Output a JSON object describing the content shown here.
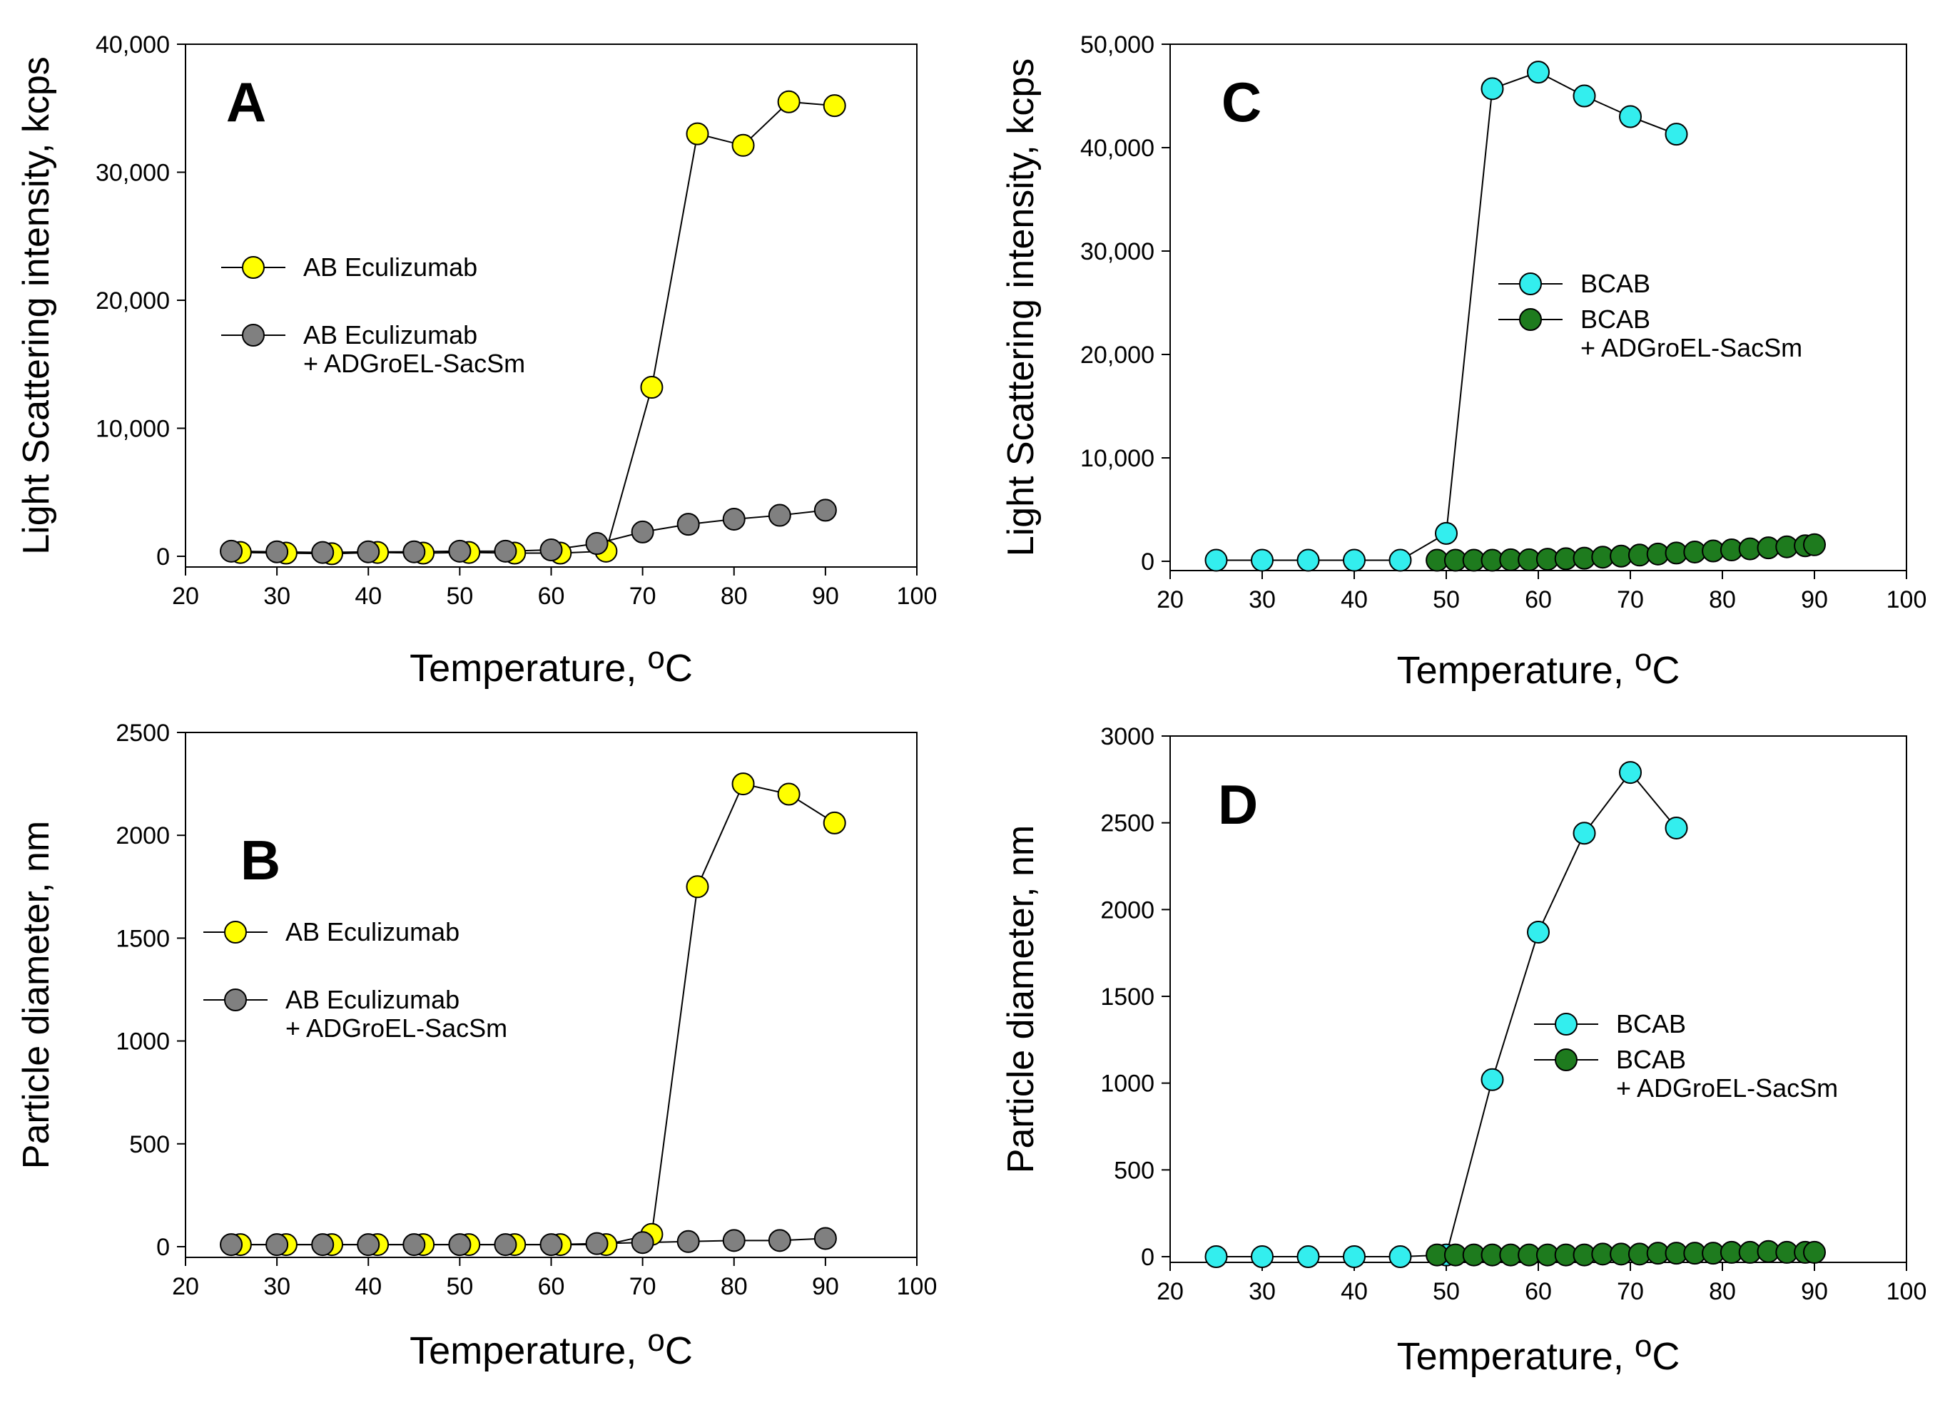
{
  "chart_data": [
    {
      "panel_label": "A",
      "type": "scatter",
      "xlabel": "Temperature, ",
      "xlabel_superscript": "o",
      "xlabel_suffix": "C",
      "ylabel": "Light Scattering intensity, kcps",
      "xlim": [
        20,
        100
      ],
      "ylim": [
        0,
        40000
      ],
      "xticks": [
        20,
        30,
        40,
        50,
        60,
        70,
        80,
        90,
        100
      ],
      "yticks": [
        0,
        10000,
        20000,
        30000,
        40000
      ],
      "ytick_labels": [
        "0",
        "10,000",
        "20,000",
        "30,000",
        "40,000"
      ],
      "legend_position": "left-middle",
      "series": [
        {
          "name": "AB Eculizumab",
          "name_line2": "",
          "color": "#ffff00",
          "x": [
            26,
            31,
            36,
            41,
            46,
            51,
            56,
            61,
            66,
            71,
            76,
            81,
            86,
            91
          ],
          "y": [
            300,
            250,
            200,
            300,
            250,
            300,
            250,
            250,
            400,
            13200,
            33000,
            32100,
            35500,
            35200
          ]
        },
        {
          "name": "AB Eculizumab",
          "name_line2": "+ ADGroEL-SacSm",
          "color": "#808080",
          "x": [
            25,
            30,
            35,
            40,
            45,
            50,
            55,
            60,
            65,
            70,
            75,
            80,
            85,
            90
          ],
          "y": [
            400,
            350,
            300,
            350,
            350,
            400,
            400,
            500,
            1000,
            1900,
            2500,
            2900,
            3200,
            3600
          ]
        }
      ]
    },
    {
      "panel_label": "B",
      "type": "scatter",
      "xlabel": "Temperature, ",
      "xlabel_superscript": "o",
      "xlabel_suffix": "C",
      "ylabel": "Particle diameter, nm",
      "xlim": [
        20,
        100
      ],
      "ylim": [
        0,
        2500
      ],
      "xticks": [
        20,
        30,
        40,
        50,
        60,
        70,
        80,
        90,
        100
      ],
      "yticks": [
        0,
        500,
        1000,
        1500,
        2000,
        2500
      ],
      "ytick_labels": [
        "0",
        "500",
        "1000",
        "1500",
        "2000",
        "2500"
      ],
      "legend_position": "left-middle",
      "series": [
        {
          "name": "AB Eculizumab",
          "name_line2": "",
          "color": "#ffff00",
          "x": [
            26,
            31,
            36,
            41,
            46,
            51,
            56,
            61,
            66,
            71,
            76,
            81,
            86,
            91
          ],
          "y": [
            10,
            10,
            10,
            10,
            10,
            10,
            10,
            10,
            10,
            60,
            1750,
            2250,
            2200,
            2060
          ]
        },
        {
          "name": "AB Eculizumab",
          "name_line2": "+ ADGroEL-SacSm",
          "color": "#808080",
          "x": [
            25,
            30,
            35,
            40,
            45,
            50,
            55,
            60,
            65,
            70,
            75,
            80,
            85,
            90
          ],
          "y": [
            10,
            10,
            10,
            10,
            10,
            10,
            10,
            10,
            15,
            20,
            25,
            30,
            30,
            40
          ]
        }
      ]
    },
    {
      "panel_label": "C",
      "type": "scatter",
      "xlabel": "Temperature, ",
      "xlabel_superscript": "o",
      "xlabel_suffix": "C",
      "ylabel": "Light Scattering intensity, kcps",
      "xlim": [
        20,
        100
      ],
      "ylim": [
        0,
        50000
      ],
      "xticks": [
        20,
        30,
        40,
        50,
        60,
        70,
        80,
        90,
        100
      ],
      "yticks": [
        0,
        10000,
        20000,
        30000,
        40000,
        50000
      ],
      "ytick_labels": [
        "0",
        "10,000",
        "20,000",
        "30,000",
        "40,000",
        "50,000"
      ],
      "legend_position": "right-middle",
      "series": [
        {
          "name": "BCAB",
          "name_line2": "",
          "color": "#33eeee",
          "x": [
            25,
            30,
            35,
            40,
            45,
            50,
            55,
            60,
            65,
            70,
            75
          ],
          "y": [
            100,
            100,
            100,
            100,
            100,
            2700,
            45700,
            47300,
            45000,
            43000,
            41300
          ]
        },
        {
          "name": "BCAB",
          "name_line2": "+ ADGroEL-SacSm",
          "color": "#1e7b1e",
          "x": [
            49,
            51,
            53,
            55,
            57,
            59,
            61,
            63,
            65,
            67,
            69,
            71,
            73,
            75,
            77,
            79,
            81,
            83,
            85,
            87,
            89,
            90
          ],
          "y": [
            100,
            100,
            100,
            100,
            150,
            150,
            200,
            250,
            300,
            400,
            500,
            600,
            700,
            800,
            900,
            1000,
            1100,
            1200,
            1300,
            1400,
            1500,
            1600
          ]
        }
      ]
    },
    {
      "panel_label": "D",
      "type": "scatter",
      "xlabel": "Temperature, ",
      "xlabel_superscript": "o",
      "xlabel_suffix": "C",
      "ylabel": "Particle diameter, nm",
      "xlim": [
        20,
        100
      ],
      "ylim": [
        0,
        3000
      ],
      "xticks": [
        20,
        30,
        40,
        50,
        60,
        70,
        80,
        90,
        100
      ],
      "yticks": [
        0,
        500,
        1000,
        1500,
        2000,
        2500,
        3000
      ],
      "ytick_labels": [
        "0",
        "500",
        "1000",
        "1500",
        "2000",
        "2500",
        "3000"
      ],
      "legend_position": "right-middle",
      "series": [
        {
          "name": "BCAB",
          "name_line2": "",
          "color": "#33eeee",
          "x": [
            25,
            30,
            35,
            40,
            45,
            50,
            55,
            60,
            65,
            70,
            75
          ],
          "y": [
            0,
            0,
            0,
            0,
            0,
            10,
            1020,
            1870,
            2440,
            2790,
            2470
          ]
        },
        {
          "name": "BCAB",
          "name_line2": "+ ADGroEL-SacSm",
          "color": "#1e7b1e",
          "x": [
            49,
            51,
            53,
            55,
            57,
            59,
            61,
            63,
            65,
            67,
            69,
            71,
            73,
            75,
            77,
            79,
            81,
            83,
            85,
            87,
            89,
            90
          ],
          "y": [
            10,
            10,
            10,
            10,
            10,
            10,
            10,
            10,
            10,
            15,
            15,
            15,
            20,
            20,
            20,
            20,
            25,
            25,
            30,
            25,
            25,
            25
          ]
        }
      ]
    }
  ]
}
